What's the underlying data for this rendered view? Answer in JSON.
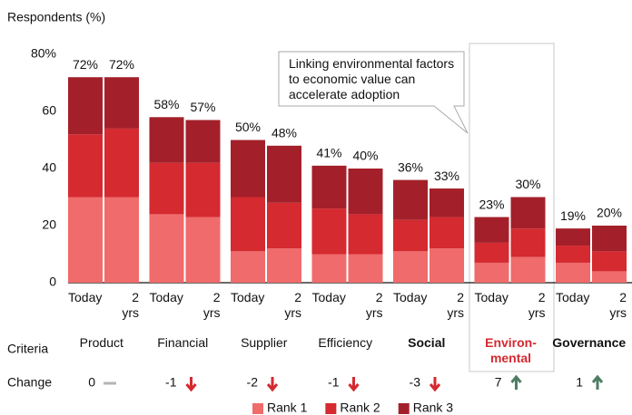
{
  "chart_data": {
    "type": "stacked-bar",
    "y_label": "Respondents (%)",
    "annotation": "Linking environmental factors to economic value can accelerate adoption",
    "row_labels": {
      "criteria": "Criteria",
      "change": "Change"
    },
    "categories": [
      "Product",
      "Financial",
      "Supplier",
      "Efficiency",
      "Social",
      "Environ-mental",
      "Governance"
    ],
    "bold_categories": [
      "Social",
      "Governance"
    ],
    "highlight": {
      "category": "Environ-mental",
      "color": "#d42a30"
    },
    "periods": [
      "Today",
      "2 yrs"
    ],
    "series": [
      {
        "name": "Rank 1",
        "color": "#f06b6b",
        "values": [
          [
            30,
            30
          ],
          [
            24,
            23
          ],
          [
            11,
            12
          ],
          [
            10,
            10
          ],
          [
            11,
            12
          ],
          [
            7,
            9
          ],
          [
            7,
            4
          ]
        ]
      },
      {
        "name": "Rank 2",
        "color": "#d42a30",
        "values": [
          [
            22,
            24
          ],
          [
            18,
            19
          ],
          [
            19,
            16
          ],
          [
            16,
            14
          ],
          [
            11,
            11
          ],
          [
            7,
            10
          ],
          [
            6,
            7
          ]
        ]
      },
      {
        "name": "Rank 3",
        "color": "#a3202a",
        "values": [
          [
            20,
            18
          ],
          [
            16,
            15
          ],
          [
            20,
            20
          ],
          [
            15,
            16
          ],
          [
            14,
            10
          ],
          [
            9,
            11
          ],
          [
            6,
            9
          ]
        ]
      }
    ],
    "totals": {
      "values": [
        [
          72,
          72
        ],
        [
          58,
          57
        ],
        [
          50,
          48
        ],
        [
          41,
          40
        ],
        [
          36,
          33
        ],
        [
          23,
          30
        ],
        [
          19,
          20
        ]
      ],
      "value_labels": [
        [
          "72%",
          "72%"
        ],
        [
          "58%",
          "57%"
        ],
        [
          "50%",
          "48%"
        ],
        [
          "41%",
          "40%"
        ],
        [
          "36%",
          "33%"
        ],
        [
          "23%",
          "30%"
        ],
        [
          "19%",
          "20%"
        ]
      ]
    },
    "change": [
      0,
      -1,
      -2,
      -1,
      -3,
      7,
      1
    ],
    "ylim": [
      0,
      80
    ],
    "yticks": [
      0,
      20,
      40,
      60,
      {
        "value": 80,
        "label": "80%"
      }
    ],
    "legend": "bottom"
  }
}
